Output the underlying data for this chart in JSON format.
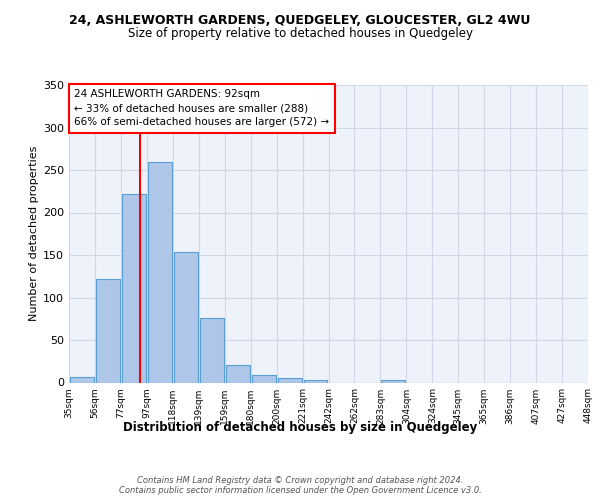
{
  "title": "24, ASHLEWORTH GARDENS, QUEDGELEY, GLOUCESTER, GL2 4WU",
  "subtitle": "Size of property relative to detached houses in Quedgeley",
  "xlabel": "Distribution of detached houses by size in Quedgeley",
  "ylabel": "Number of detached properties",
  "bin_labels": [
    "35sqm",
    "56sqm",
    "77sqm",
    "97sqm",
    "118sqm",
    "139sqm",
    "159sqm",
    "180sqm",
    "200sqm",
    "221sqm",
    "242sqm",
    "262sqm",
    "283sqm",
    "304sqm",
    "324sqm",
    "345sqm",
    "365sqm",
    "386sqm",
    "407sqm",
    "427sqm",
    "448sqm"
  ],
  "bar_values": [
    6,
    122,
    222,
    260,
    153,
    76,
    21,
    9,
    5,
    3,
    0,
    0,
    3,
    0,
    0,
    0,
    0,
    0,
    0,
    0
  ],
  "bar_color": "#aec6e8",
  "bar_edgecolor": "#5a9fd4",
  "grid_color": "#d0d8e8",
  "background_color": "#eef2fa",
  "vline_x": 3,
  "vline_color": "red",
  "annotation_text": "24 ASHLEWORTH GARDENS: 92sqm\n← 33% of detached houses are smaller (288)\n66% of semi-detached houses are larger (572) →",
  "annotation_box_edgecolor": "red",
  "footnote": "Contains HM Land Registry data © Crown copyright and database right 2024.\nContains public sector information licensed under the Open Government Licence v3.0.",
  "ylim": [
    0,
    350
  ],
  "yticks": [
    0,
    50,
    100,
    150,
    200,
    250,
    300,
    350
  ],
  "bin_edges": [
    35,
    56,
    77,
    97,
    118,
    139,
    159,
    180,
    200,
    221,
    242,
    262,
    283,
    304,
    324,
    345,
    365,
    386,
    407,
    427,
    448
  ],
  "n_bins": 20
}
